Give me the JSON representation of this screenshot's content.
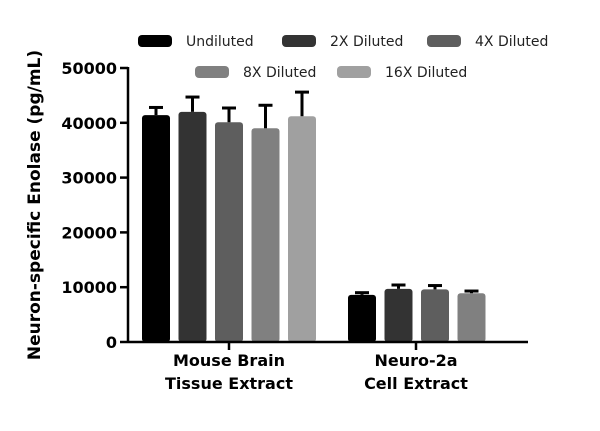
{
  "chart_data": {
    "type": "bar",
    "title": "",
    "xlabel": "",
    "ylabel": "Neuron-specific Enolase (pg/mL)",
    "ylim": [
      0,
      50000
    ],
    "yticks": [
      0,
      10000,
      20000,
      30000,
      40000,
      50000
    ],
    "grid": false,
    "legend_position": "top",
    "categories": [
      "Mouse Brain\nTissue Extract",
      "Neuro-2a\nCell Extract"
    ],
    "category_lines": [
      [
        "Mouse Brain",
        "Tissue Extract"
      ],
      [
        "Neuro-2a",
        "Cell Extract"
      ]
    ],
    "series": [
      {
        "name": "Undiluted",
        "color": "#000000",
        "values": [
          41400,
          8600
        ],
        "error": [
          1400,
          400
        ]
      },
      {
        "name": "2X Diluted",
        "color": "#333333",
        "values": [
          42000,
          9700
        ],
        "error": [
          2700,
          700
        ]
      },
      {
        "name": "4X Diluted",
        "color": "#5e5e5e",
        "values": [
          40100,
          9600
        ],
        "error": [
          2600,
          700
        ]
      },
      {
        "name": "8X Diluted",
        "color": "#808080",
        "values": [
          39000,
          8900
        ],
        "error": [
          4200,
          400
        ]
      },
      {
        "name": "16X Diluted",
        "color": "#a0a0a0",
        "values": [
          41200,
          null
        ],
        "error": [
          4400,
          null
        ]
      }
    ]
  }
}
